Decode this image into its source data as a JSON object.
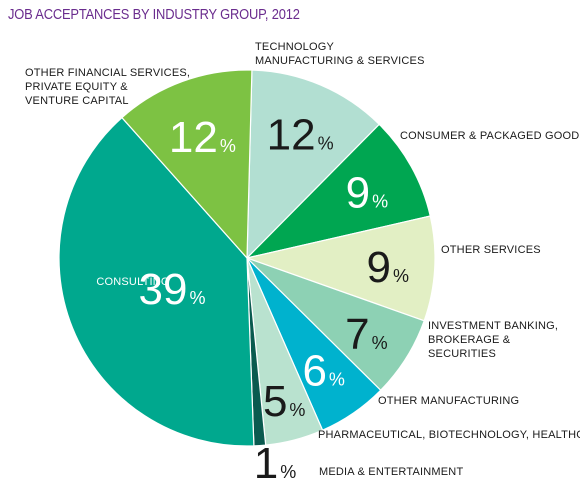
{
  "chart_data": {
    "type": "pie",
    "title": "JOB ACCEPTANCES BY INDUSTRY GROUP, 2012",
    "unit": "%",
    "slices": [
      {
        "label": [
          "TECHNOLOGY",
          "MANUFACTURING & SERVICES"
        ],
        "value": 12,
        "color": "#b2dfd2",
        "text_color": "#1a1a1a",
        "big": true
      },
      {
        "label": [
          "CONSUMER & PACKAGED GOODS"
        ],
        "value": 9,
        "color": "#00a651",
        "text_color": "#ffffff",
        "big": true
      },
      {
        "label": [
          "OTHER SERVICES"
        ],
        "value": 9,
        "color": "#e2efc4",
        "text_color": "#1a1a1a",
        "big": true
      },
      {
        "label": [
          "INVESTMENT BANKING,",
          "BROKERAGE &",
          "SECURITIES"
        ],
        "value": 7,
        "color": "#8dd1b4",
        "text_color": "#1a1a1a",
        "big": true
      },
      {
        "label": [
          "OTHER MANUFACTURING"
        ],
        "value": 6,
        "color": "#00b2ce",
        "text_color": "#ffffff",
        "big": true
      },
      {
        "label": [
          "PHARMACEUTICAL, BIOTECHNOLOGY, HEALTHCARE"
        ],
        "value": 5,
        "color": "#b9e2cf",
        "text_color": "#1a1a1a",
        "big": true
      },
      {
        "label": [
          "MEDIA & ENTERTAINMENT"
        ],
        "value": 1,
        "color": "#0a5a4f",
        "text_color": "#1a1a1a",
        "big": false
      },
      {
        "label": [
          "CONSULTING"
        ],
        "value": 39,
        "color": "#00a88e",
        "text_color": "#ffffff",
        "big": true
      },
      {
        "label": [
          "OTHER FINANCIAL SERVICES,",
          "PRIVATE EQUITY &",
          "VENTURE CAPITAL"
        ],
        "value": 12,
        "color": "#7dc243",
        "text_color": "#ffffff",
        "big": true
      }
    ]
  }
}
